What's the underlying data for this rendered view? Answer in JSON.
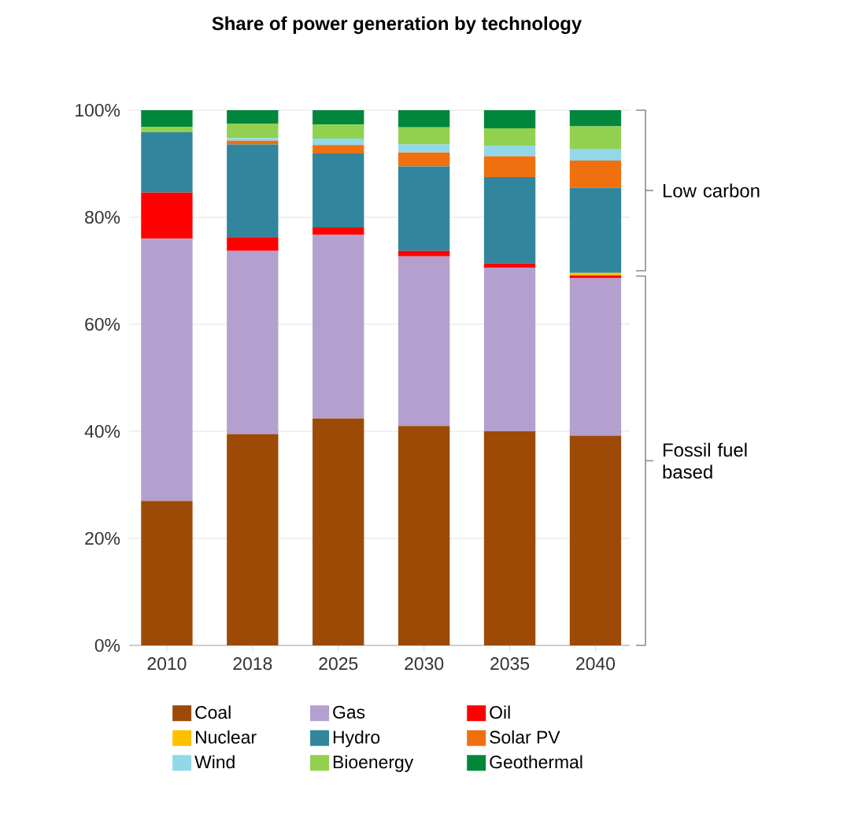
{
  "chart_data": {
    "type": "bar",
    "title": "Share of power generation by technology",
    "categories": [
      "2010",
      "2018",
      "2025",
      "2030",
      "2035",
      "2040"
    ],
    "stacked": true,
    "series": [
      {
        "name": "Coal",
        "color": "#9c4a05",
        "values": [
          27,
          39.5,
          42.4,
          41,
          40,
          39.2
        ]
      },
      {
        "name": "Gas",
        "color": "#b4a0ce",
        "values": [
          49,
          34.2,
          34.3,
          31.7,
          30.6,
          29.4
        ]
      },
      {
        "name": "Oil",
        "color": "#ff0000",
        "values": [
          8.6,
          2.6,
          1.4,
          1,
          0.8,
          0.5
        ]
      },
      {
        "name": "Nuclear",
        "color": "#ffc000",
        "values": [
          0,
          0,
          0,
          0,
          0,
          0.5
        ]
      },
      {
        "name": "Hydro",
        "color": "#31859c",
        "values": [
          11.3,
          17.3,
          13.8,
          15.8,
          16.1,
          15.9
        ]
      },
      {
        "name": "Solar PV",
        "color": "#f07010",
        "values": [
          0,
          0.7,
          1.6,
          2.6,
          3.9,
          5.1
        ]
      },
      {
        "name": "Wind",
        "color": "#92d8e8",
        "values": [
          0,
          0.5,
          1.2,
          1.5,
          2,
          2.2
        ]
      },
      {
        "name": "Bioenergy",
        "color": "#92d050",
        "values": [
          1,
          2.7,
          2.6,
          3.2,
          3.2,
          4.2
        ]
      },
      {
        "name": "Geothermal",
        "color": "#00873c",
        "values": [
          3.1,
          2.5,
          2.7,
          3.2,
          3.4,
          3
        ]
      }
    ],
    "ylim": [
      0,
      100
    ],
    "yticks": [
      {
        "value": 0,
        "label": "0%"
      },
      {
        "value": 20,
        "label": "20%"
      },
      {
        "value": 40,
        "label": "40%"
      },
      {
        "value": 60,
        "label": "60%"
      },
      {
        "value": 80,
        "label": "80%"
      },
      {
        "value": 100,
        "label": "100%"
      }
    ],
    "grid": "y",
    "legend": "bottom",
    "annotations": [
      "Low carbon",
      "Fossil fuel based"
    ]
  }
}
